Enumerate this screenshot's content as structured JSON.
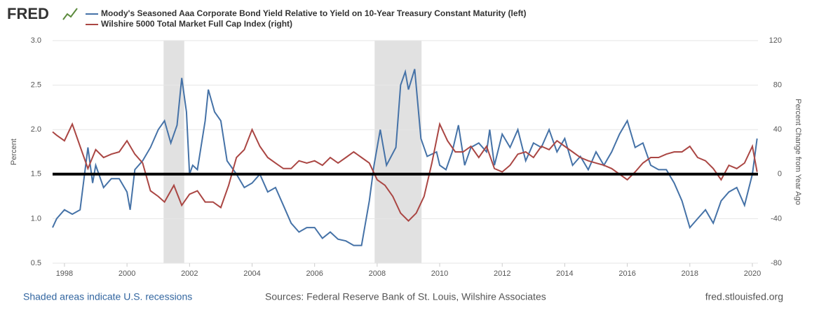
{
  "logo": "FRED",
  "footer": {
    "recession_note": "Shaded areas indicate U.S. recessions",
    "source": "Sources: Federal Reserve Bank of St. Louis, Wilshire Associates",
    "site": "fred.stlouisfed.org"
  },
  "chart_data": {
    "type": "line",
    "ylabel": "Percent",
    "y2label": "Percent Change from Year Ago",
    "xlim": [
      1997.62,
      2020.18
    ],
    "xticks": [
      1998,
      2000,
      2002,
      2004,
      2006,
      2008,
      2010,
      2012,
      2014,
      2016,
      2018,
      2020
    ],
    "ylim": [
      0.5,
      3.0
    ],
    "yticks": [
      {
        "value": 0.5,
        "label": "0.5"
      },
      {
        "value": 1,
        "label": "1.0"
      },
      1.5,
      {
        "value": 2,
        "label": "2.0"
      },
      2.5,
      {
        "value": 3,
        "label": "3.0"
      }
    ],
    "y2lim": [
      -80,
      120
    ],
    "y2ticks": [
      -80,
      -40,
      0,
      40,
      80,
      120
    ],
    "grid": true,
    "zero_line": true,
    "recessions": [
      [
        2001.17,
        2001.83
      ],
      [
        2007.92,
        2009.42
      ]
    ],
    "series": [
      {
        "name": "Moody's Seasoned Aaa Corporate Bond Yield Relative to Yield on 10-Year Treasury Constant Maturity (left)",
        "color": "#4572a7",
        "x": [
          1997.62,
          1997.75,
          1998,
          1998.25,
          1998.5,
          1998.75,
          1998.9,
          1999,
          1999.25,
          1999.5,
          1999.75,
          2000,
          2000.1,
          2000.25,
          2000.5,
          2000.75,
          2001,
          2001.2,
          2001.4,
          2001.6,
          2001.75,
          2001.9,
          2002,
          2002.1,
          2002.25,
          2002.5,
          2002.6,
          2002.8,
          2003,
          2003.2,
          2003.5,
          2003.75,
          2004,
          2004.25,
          2004.5,
          2004.75,
          2005,
          2005.25,
          2005.5,
          2005.75,
          2006,
          2006.25,
          2006.5,
          2006.75,
          2007,
          2007.25,
          2007.5,
          2007.75,
          2007.9,
          2008.1,
          2008.3,
          2008.6,
          2008.75,
          2008.9,
          2009,
          2009.2,
          2009.4,
          2009.6,
          2009.9,
          2010,
          2010.2,
          2010.4,
          2010.6,
          2010.8,
          2011,
          2011.25,
          2011.5,
          2011.6,
          2011.75,
          2012,
          2012.25,
          2012.5,
          2012.75,
          2013,
          2013.25,
          2013.5,
          2013.75,
          2014,
          2014.25,
          2014.5,
          2014.75,
          2015,
          2015.25,
          2015.5,
          2015.75,
          2016,
          2016.25,
          2016.5,
          2016.75,
          2017,
          2017.25,
          2017.5,
          2017.75,
          2018,
          2018.25,
          2018.5,
          2018.75,
          2019,
          2019.25,
          2019.5,
          2019.75,
          2020,
          2020.15
        ],
        "values": [
          0.9,
          1.0,
          1.1,
          1.05,
          1.1,
          1.8,
          1.4,
          1.6,
          1.35,
          1.45,
          1.45,
          1.3,
          1.1,
          1.55,
          1.65,
          1.8,
          2.0,
          2.1,
          1.85,
          2.05,
          2.58,
          2.2,
          1.5,
          1.6,
          1.55,
          2.1,
          2.45,
          2.2,
          2.1,
          1.65,
          1.5,
          1.35,
          1.4,
          1.5,
          1.3,
          1.35,
          1.15,
          0.95,
          0.85,
          0.9,
          0.9,
          0.78,
          0.85,
          0.77,
          0.75,
          0.7,
          0.7,
          1.2,
          1.6,
          2.0,
          1.6,
          1.8,
          2.5,
          2.65,
          2.45,
          2.68,
          1.9,
          1.7,
          1.75,
          1.6,
          1.55,
          1.75,
          2.05,
          1.6,
          1.8,
          1.85,
          1.75,
          2.0,
          1.6,
          1.95,
          1.8,
          2.0,
          1.65,
          1.85,
          1.8,
          2.0,
          1.75,
          1.9,
          1.6,
          1.7,
          1.55,
          1.75,
          1.6,
          1.75,
          1.95,
          2.1,
          1.8,
          1.85,
          1.6,
          1.55,
          1.55,
          1.4,
          1.2,
          0.9,
          1.0,
          1.1,
          0.95,
          1.2,
          1.3,
          1.35,
          1.15,
          1.5,
          1.9
        ]
      },
      {
        "name": "Wilshire 5000 Total Market Full Cap Index (right)",
        "color": "#aa4643",
        "axis": "y2",
        "x": [
          1997.62,
          1997.75,
          1998,
          1998.25,
          1998.5,
          1998.75,
          1999,
          1999.25,
          1999.5,
          1999.75,
          2000,
          2000.25,
          2000.5,
          2000.75,
          2001,
          2001.2,
          2001.5,
          2001.75,
          2002,
          2002.25,
          2002.5,
          2002.75,
          2003,
          2003.25,
          2003.5,
          2003.75,
          2004,
          2004.25,
          2004.5,
          2004.75,
          2005,
          2005.25,
          2005.5,
          2005.75,
          2006,
          2006.25,
          2006.5,
          2006.75,
          2007,
          2007.25,
          2007.5,
          2007.75,
          2008,
          2008.25,
          2008.5,
          2008.75,
          2009,
          2009.25,
          2009.5,
          2009.75,
          2010,
          2010.25,
          2010.5,
          2010.75,
          2011,
          2011.25,
          2011.5,
          2011.75,
          2012,
          2012.25,
          2012.5,
          2012.75,
          2013,
          2013.25,
          2013.5,
          2013.75,
          2014,
          2014.25,
          2014.5,
          2014.75,
          2015,
          2015.25,
          2015.5,
          2015.75,
          2016,
          2016.25,
          2016.5,
          2016.75,
          2017,
          2017.25,
          2017.5,
          2017.75,
          2018,
          2018.25,
          2018.5,
          2018.75,
          2019,
          2019.25,
          2019.5,
          2019.75,
          2020,
          2020.15
        ],
        "values": [
          38,
          35,
          30,
          45,
          25,
          5,
          22,
          15,
          18,
          20,
          30,
          18,
          10,
          -15,
          -20,
          -25,
          -10,
          -28,
          -18,
          -15,
          -25,
          -25,
          -30,
          -10,
          15,
          22,
          40,
          25,
          15,
          10,
          5,
          5,
          12,
          10,
          12,
          8,
          15,
          10,
          15,
          20,
          15,
          10,
          -5,
          -10,
          -20,
          -35,
          -42,
          -35,
          -20,
          10,
          45,
          30,
          20,
          20,
          25,
          15,
          25,
          5,
          2,
          8,
          18,
          20,
          15,
          25,
          22,
          30,
          25,
          20,
          15,
          12,
          10,
          8,
          5,
          0,
          -5,
          2,
          10,
          15,
          15,
          18,
          20,
          20,
          25,
          15,
          12,
          5,
          -5,
          8,
          5,
          10,
          25,
          2
        ]
      }
    ]
  }
}
